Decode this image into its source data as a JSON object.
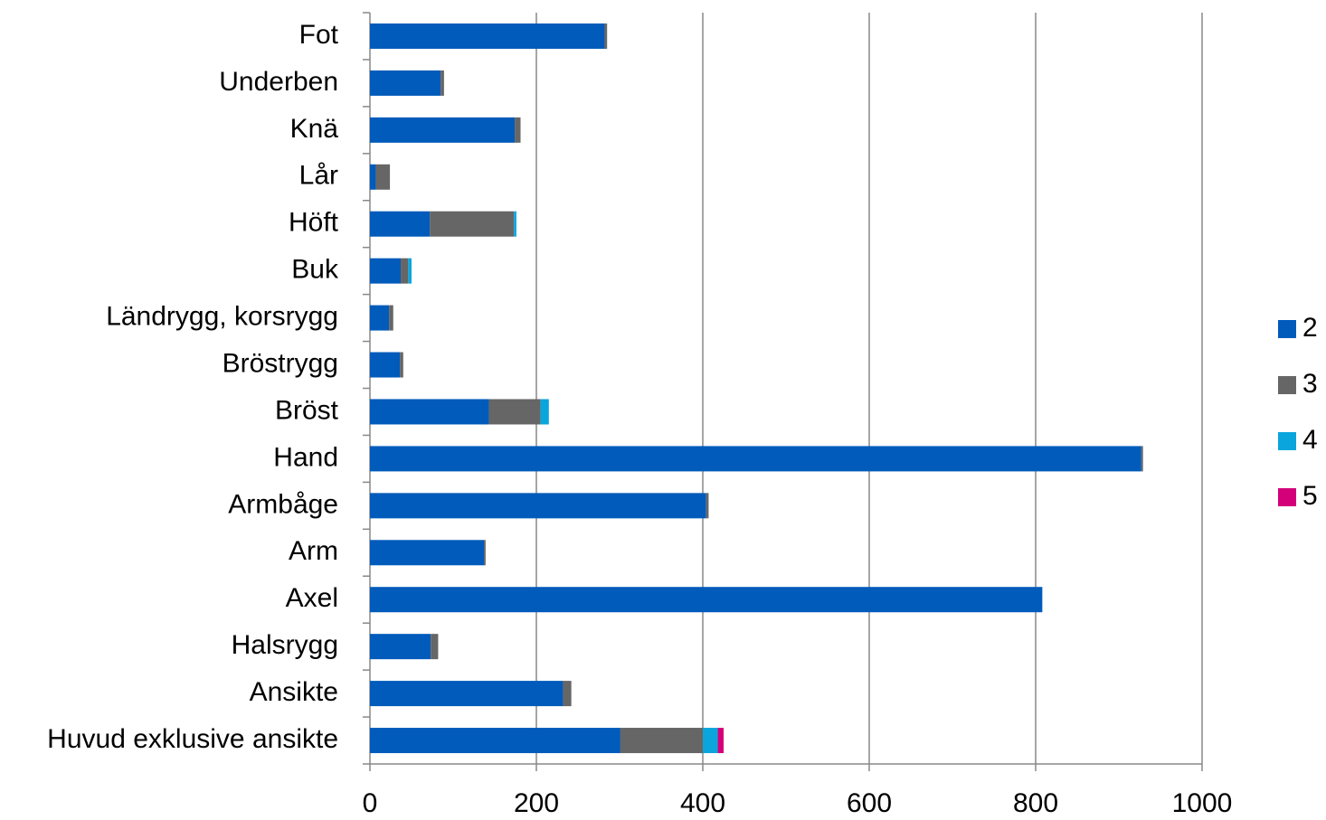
{
  "chart_data": {
    "type": "stacked_bar_horizontal",
    "categories": [
      "Huvud exklusive ansikte",
      "Ansikte",
      "Halsrygg",
      "Axel",
      "Arm",
      "Armbåge",
      "Hand",
      "Bröst",
      "Bröstrygg",
      "Ländrygg, korsrygg",
      "Buk",
      "Höft",
      "Lår",
      "Knä",
      "Underben",
      "Fot"
    ],
    "series": [
      {
        "name": "2",
        "color": "#005bbb",
        "values": [
          301,
          232,
          73,
          808,
          137,
          404,
          927,
          143,
          36,
          23,
          37,
          72,
          7,
          174,
          85,
          282
        ]
      },
      {
        "name": "3",
        "color": "#666666",
        "values": [
          99,
          10,
          9,
          0,
          2,
          3,
          2,
          62,
          4,
          5,
          9,
          101,
          17,
          7,
          4,
          3
        ]
      },
      {
        "name": "4",
        "color": "#0aa5dd",
        "values": [
          18,
          0,
          0,
          0,
          0,
          0,
          0,
          10,
          0,
          0,
          4,
          3,
          0,
          0,
          0,
          0
        ]
      },
      {
        "name": "5",
        "color": "#d4007a",
        "values": [
          7,
          0,
          0,
          0,
          0,
          0,
          0,
          0,
          0,
          0,
          0,
          0,
          0,
          0,
          0,
          0
        ]
      }
    ],
    "xlim": [
      0,
      1000
    ],
    "xticks": [
      0,
      200,
      400,
      600,
      800,
      1000
    ],
    "grid": true,
    "legend": "right"
  }
}
